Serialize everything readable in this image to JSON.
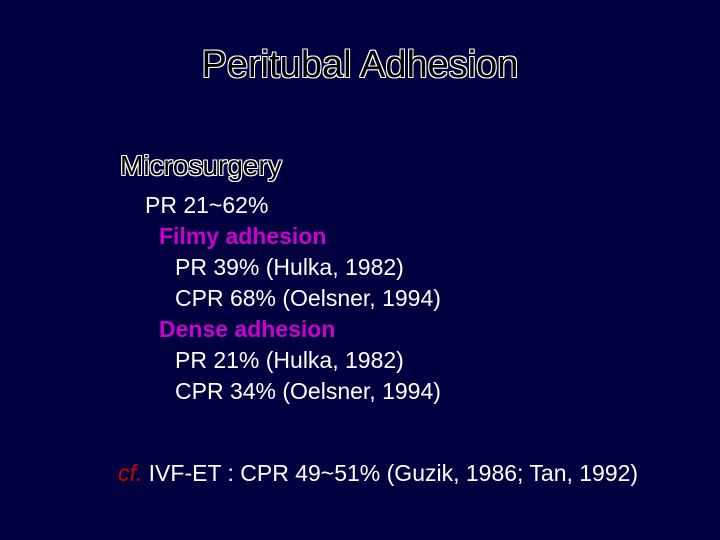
{
  "slide": {
    "title": "Peritubal Adhesion",
    "section_heading": "Microsurgery",
    "lines": {
      "pr_range": "PR  21~62%",
      "filmy_heading": "Filmy adhesion",
      "filmy_pr": "PR  39% (Hulka, 1982)",
      "filmy_cpr": "CPR  68% (Oelsner, 1994)",
      "dense_heading": "Dense adhesion",
      "dense_pr": "PR  21% (Hulka, 1982)",
      "dense_cpr": "CPR  34% (Oelsner, 1994)"
    },
    "footnote": {
      "cf": "cf.",
      "text": " IVF-ET : CPR  49~51% (Guzik, 1986; Tan, 1992)"
    }
  },
  "colors": {
    "background": "#000040",
    "title_fill": "#000000",
    "title_outline": "#ffffff",
    "body_text": "#ffffff",
    "subheading": "#cc00cc",
    "cf": "#cc0000"
  }
}
